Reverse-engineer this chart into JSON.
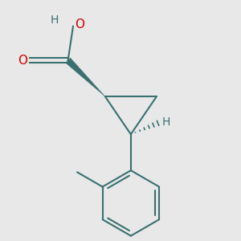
{
  "background_color": "#e8e8e8",
  "bond_color": "#3a7070",
  "O_color": "#cc0000",
  "H_color": "#3a7070",
  "line_width": 1.5,
  "font_size_atom": 11,
  "fig_size": [
    3.0,
    3.0
  ],
  "dpi": 100,
  "xlim": [
    0,
    10
  ],
  "ylim": [
    0,
    10
  ]
}
